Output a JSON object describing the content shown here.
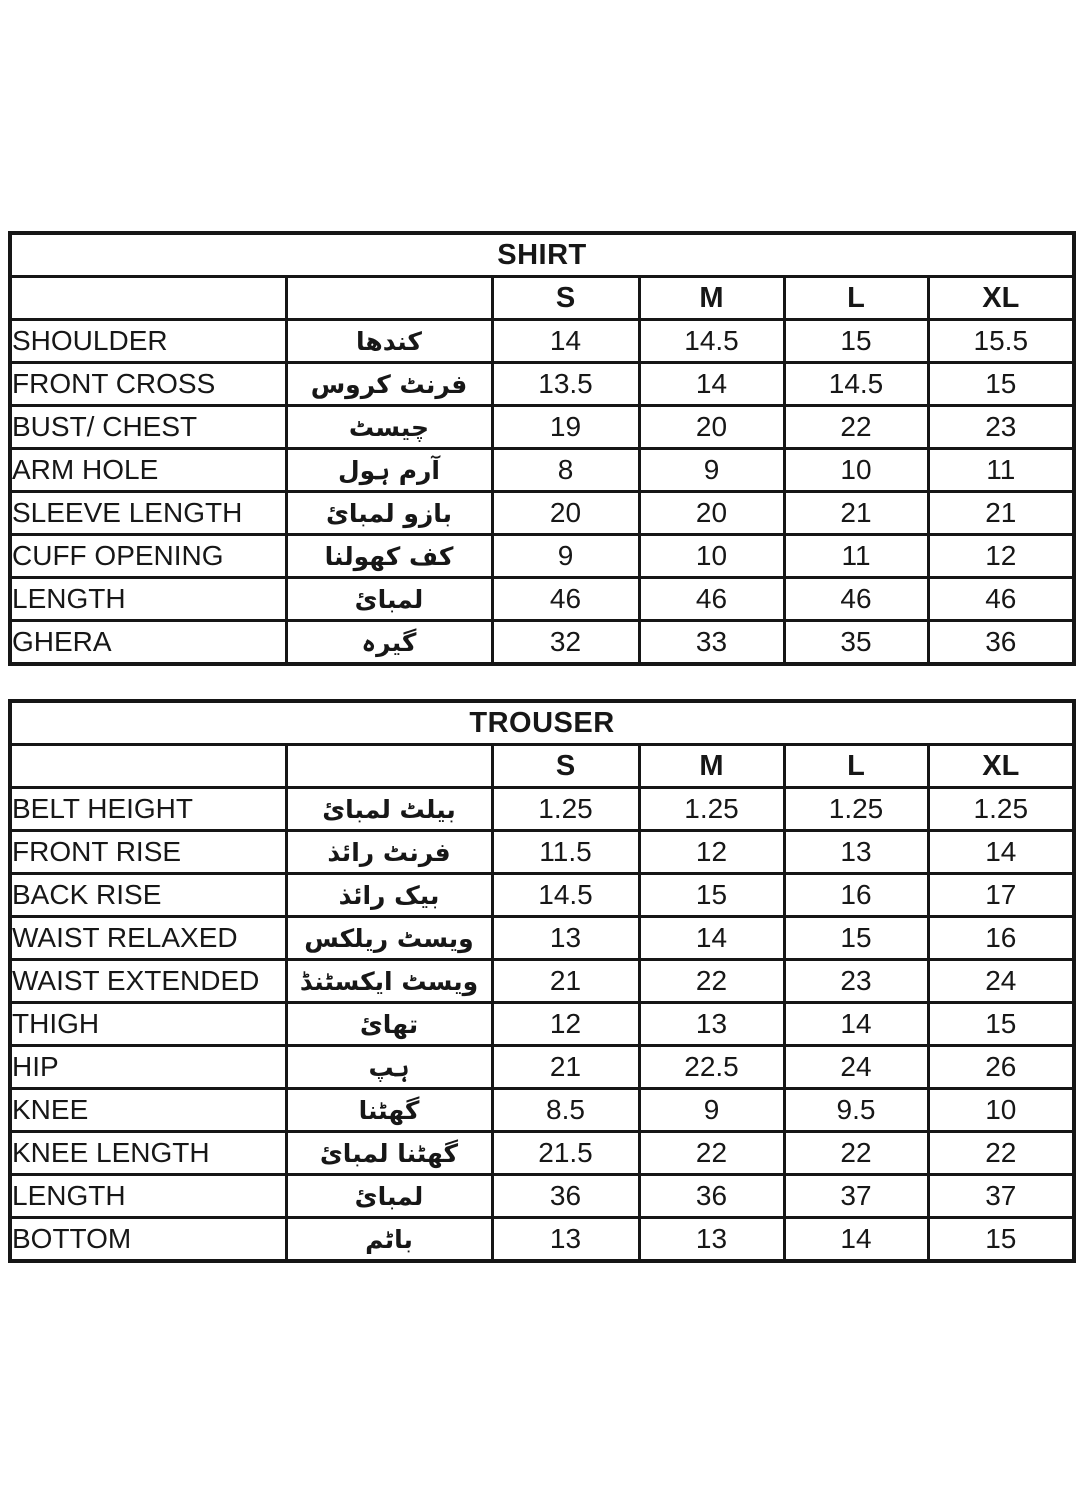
{
  "page": {
    "background_color": "#ffffff",
    "border_color": "#161616",
    "text_color": "#171717"
  },
  "tables": [
    {
      "title": "SHIRT",
      "size_headers": [
        "S",
        "M",
        "L",
        "XL"
      ],
      "rows": [
        {
          "label": "SHOULDER",
          "urdu": "کندھا",
          "values": [
            "14",
            "14.5",
            "15",
            "15.5"
          ]
        },
        {
          "label": "FRONT CROSS",
          "urdu": "فرنٹ کروس",
          "values": [
            "13.5",
            "14",
            "14.5",
            "15"
          ]
        },
        {
          "label": "BUST/ CHEST",
          "urdu": "چیسٹ",
          "values": [
            "19",
            "20",
            "22",
            "23"
          ]
        },
        {
          "label": "ARM HOLE",
          "urdu": "آرم ہول",
          "values": [
            "8",
            "9",
            "10",
            "11"
          ]
        },
        {
          "label": "SLEEVE LENGTH",
          "urdu": "بازو لمبائ",
          "values": [
            "20",
            "20",
            "21",
            "21"
          ]
        },
        {
          "label": "CUFF OPENING",
          "urdu": "کف کھولنا",
          "values": [
            "9",
            "10",
            "11",
            "12"
          ]
        },
        {
          "label": "LENGTH",
          "urdu": "لمبائ",
          "values": [
            "46",
            "46",
            "46",
            "46"
          ]
        },
        {
          "label": "GHERA",
          "urdu": "گیرہ",
          "values": [
            "32",
            "33",
            "35",
            "36"
          ]
        }
      ]
    },
    {
      "title": "TROUSER",
      "size_headers": [
        "S",
        "M",
        "L",
        "XL"
      ],
      "rows": [
        {
          "label": "BELT HEIGHT",
          "urdu": "بیلٹ  لمبائ",
          "values": [
            "1.25",
            "1.25",
            "1.25",
            "1.25"
          ]
        },
        {
          "label": "FRONT RISE",
          "urdu": "فرنٹ رائذ",
          "values": [
            "11.5",
            "12",
            "13",
            "14"
          ]
        },
        {
          "label": "BACK RISE",
          "urdu": "بیک رائذ",
          "values": [
            "14.5",
            "15",
            "16",
            "17"
          ]
        },
        {
          "label": "WAIST RELAXED",
          "urdu": "ویسٹ ریلکس",
          "values": [
            "13",
            "14",
            "15",
            "16"
          ]
        },
        {
          "label": "WAIST EXTENDED",
          "urdu": "ویسٹ ایکسٹنڈ",
          "values": [
            "21",
            "22",
            "23",
            "24"
          ]
        },
        {
          "label": "THIGH",
          "urdu": "تھائ",
          "values": [
            "12",
            "13",
            "14",
            "15"
          ]
        },
        {
          "label": "HIP",
          "urdu": "ہپ",
          "values": [
            "21",
            "22.5",
            "24",
            "26"
          ]
        },
        {
          "label": "KNEE",
          "urdu": "گھٹنا",
          "values": [
            "8.5",
            "9",
            "9.5",
            "10"
          ]
        },
        {
          "label": "KNEE LENGTH",
          "urdu": "گھٹنا  لمبائ",
          "values": [
            "21.5",
            "22",
            "22",
            "22"
          ]
        },
        {
          "label": "LENGTH",
          "urdu": "لمبائ",
          "values": [
            "36",
            "36",
            "37",
            "37"
          ]
        },
        {
          "label": "BOTTOM",
          "urdu": "باٹم",
          "values": [
            "13",
            "13",
            "14",
            "15"
          ]
        }
      ]
    }
  ]
}
